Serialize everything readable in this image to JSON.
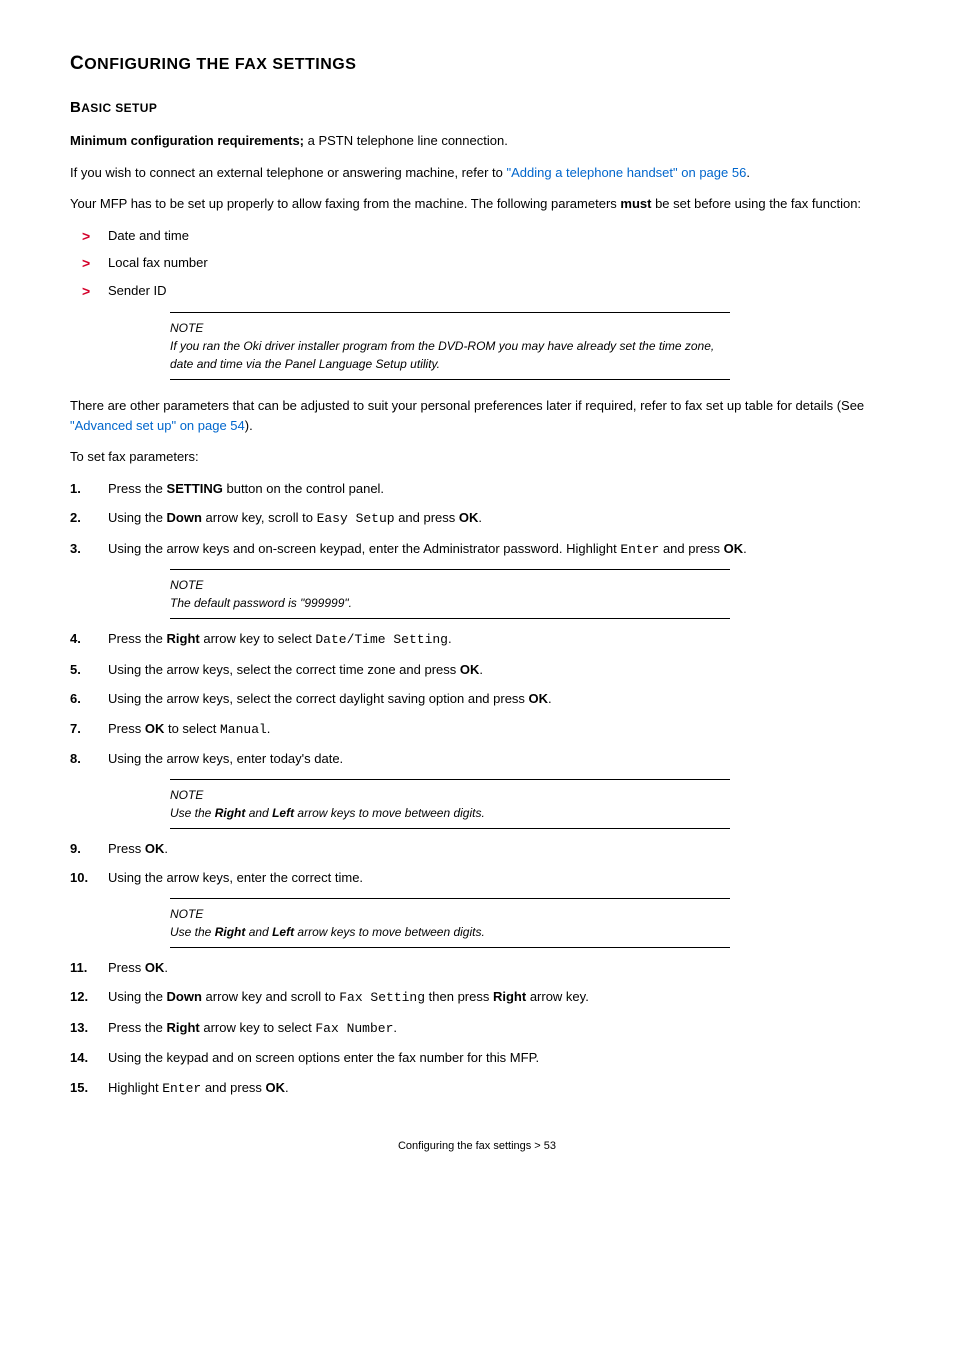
{
  "title": {
    "prefix": "C",
    "rest": "ONFIGURING THE FAX SETTINGS"
  },
  "subsection": {
    "prefix": "B",
    "rest": "ASIC SETUP"
  },
  "intro": {
    "para1_bold": "Minimum configuration requirements;",
    "para1_rest": " a PSTN telephone line connection.",
    "para2_a": "If you wish to connect an external telephone or answering machine, refer to ",
    "para2_link": "\"Adding a telephone handset\" on page 56",
    "para2_b": ".",
    "para3_a": "Your MFP has to be set up properly to allow faxing from the machine. The following parameters ",
    "para3_bold": "must",
    "para3_b": " be set before using the fax function:"
  },
  "bullets": [
    "Date and time",
    "Local fax number",
    "Sender ID"
  ],
  "note1": {
    "label": "NOTE",
    "text": "If you ran the Oki driver installer program from the DVD-ROM you may have already set the time zone, date and time via the Panel Language Setup utility."
  },
  "mid": {
    "para1_a": "There are other parameters that can be adjusted to suit your personal preferences later if required, refer to fax set up table for details (See ",
    "para1_link": "\"Advanced set up\" on page 54",
    "para1_b": ").",
    "para2": "To set fax parameters:"
  },
  "steps": {
    "s1_a": "Press the ",
    "s1_bold": "SETTING",
    "s1_b": " button on the control panel.",
    "s2_a": "Using the ",
    "s2_bold1": "Down",
    "s2_b": " arrow key, scroll to ",
    "s2_mono": "Easy Setup",
    "s2_c": " and press ",
    "s2_bold2": "OK",
    "s2_d": ".",
    "s3_a": "Using the arrow keys and on-screen keypad, enter the Administrator password. Highlight ",
    "s3_mono": "Enter",
    "s3_b": " and press ",
    "s3_bold": "OK",
    "s3_c": ".",
    "s4_a": "Press the ",
    "s4_bold": "Right",
    "s4_b": " arrow key to select ",
    "s4_mono": "Date/Time Setting",
    "s4_c": ".",
    "s5_a": "Using the arrow keys, select the correct time zone and press ",
    "s5_bold": "OK",
    "s5_b": ".",
    "s6_a": "Using the arrow keys, select the correct daylight saving option and press ",
    "s6_bold": "OK",
    "s6_b": ".",
    "s7_a": "Press ",
    "s7_bold": "OK",
    "s7_b": " to select ",
    "s7_mono": "Manual",
    "s7_c": ".",
    "s8": "Using the arrow keys, enter today's date.",
    "s9_a": "Press ",
    "s9_bold": "OK",
    "s9_b": ".",
    "s10": "Using the arrow keys, enter the correct time.",
    "s11_a": "Press ",
    "s11_bold": "OK",
    "s11_b": ".",
    "s12_a": "Using the ",
    "s12_bold1": "Down",
    "s12_b": " arrow key and scroll to ",
    "s12_mono": "Fax Setting",
    "s12_c": " then press ",
    "s12_bold2": "Right",
    "s12_d": " arrow key.",
    "s13_a": "Press the ",
    "s13_bold": "Right",
    "s13_b": " arrow key to select ",
    "s13_mono": "Fax Number",
    "s13_c": ".",
    "s14": "Using the keypad and on screen options enter the fax number for this MFP.",
    "s15_a": "Highlight ",
    "s15_mono": "Enter",
    "s15_b": " and press ",
    "s15_bold": "OK",
    "s15_c": "."
  },
  "note2": {
    "label": "NOTE",
    "text": "The default password is \"999999\"."
  },
  "note3": {
    "label": "NOTE",
    "text_a": "Use the ",
    "text_b1": "Right",
    "text_b": " and ",
    "text_b2": "Left",
    "text_c": " arrow keys to move between digits."
  },
  "note4": {
    "label": "NOTE",
    "text_a": "Use the ",
    "text_b1": "Right",
    "text_b": " and ",
    "text_b2": "Left",
    "text_c": " arrow keys to move between digits."
  },
  "footer": "Configuring the fax settings > 53"
}
